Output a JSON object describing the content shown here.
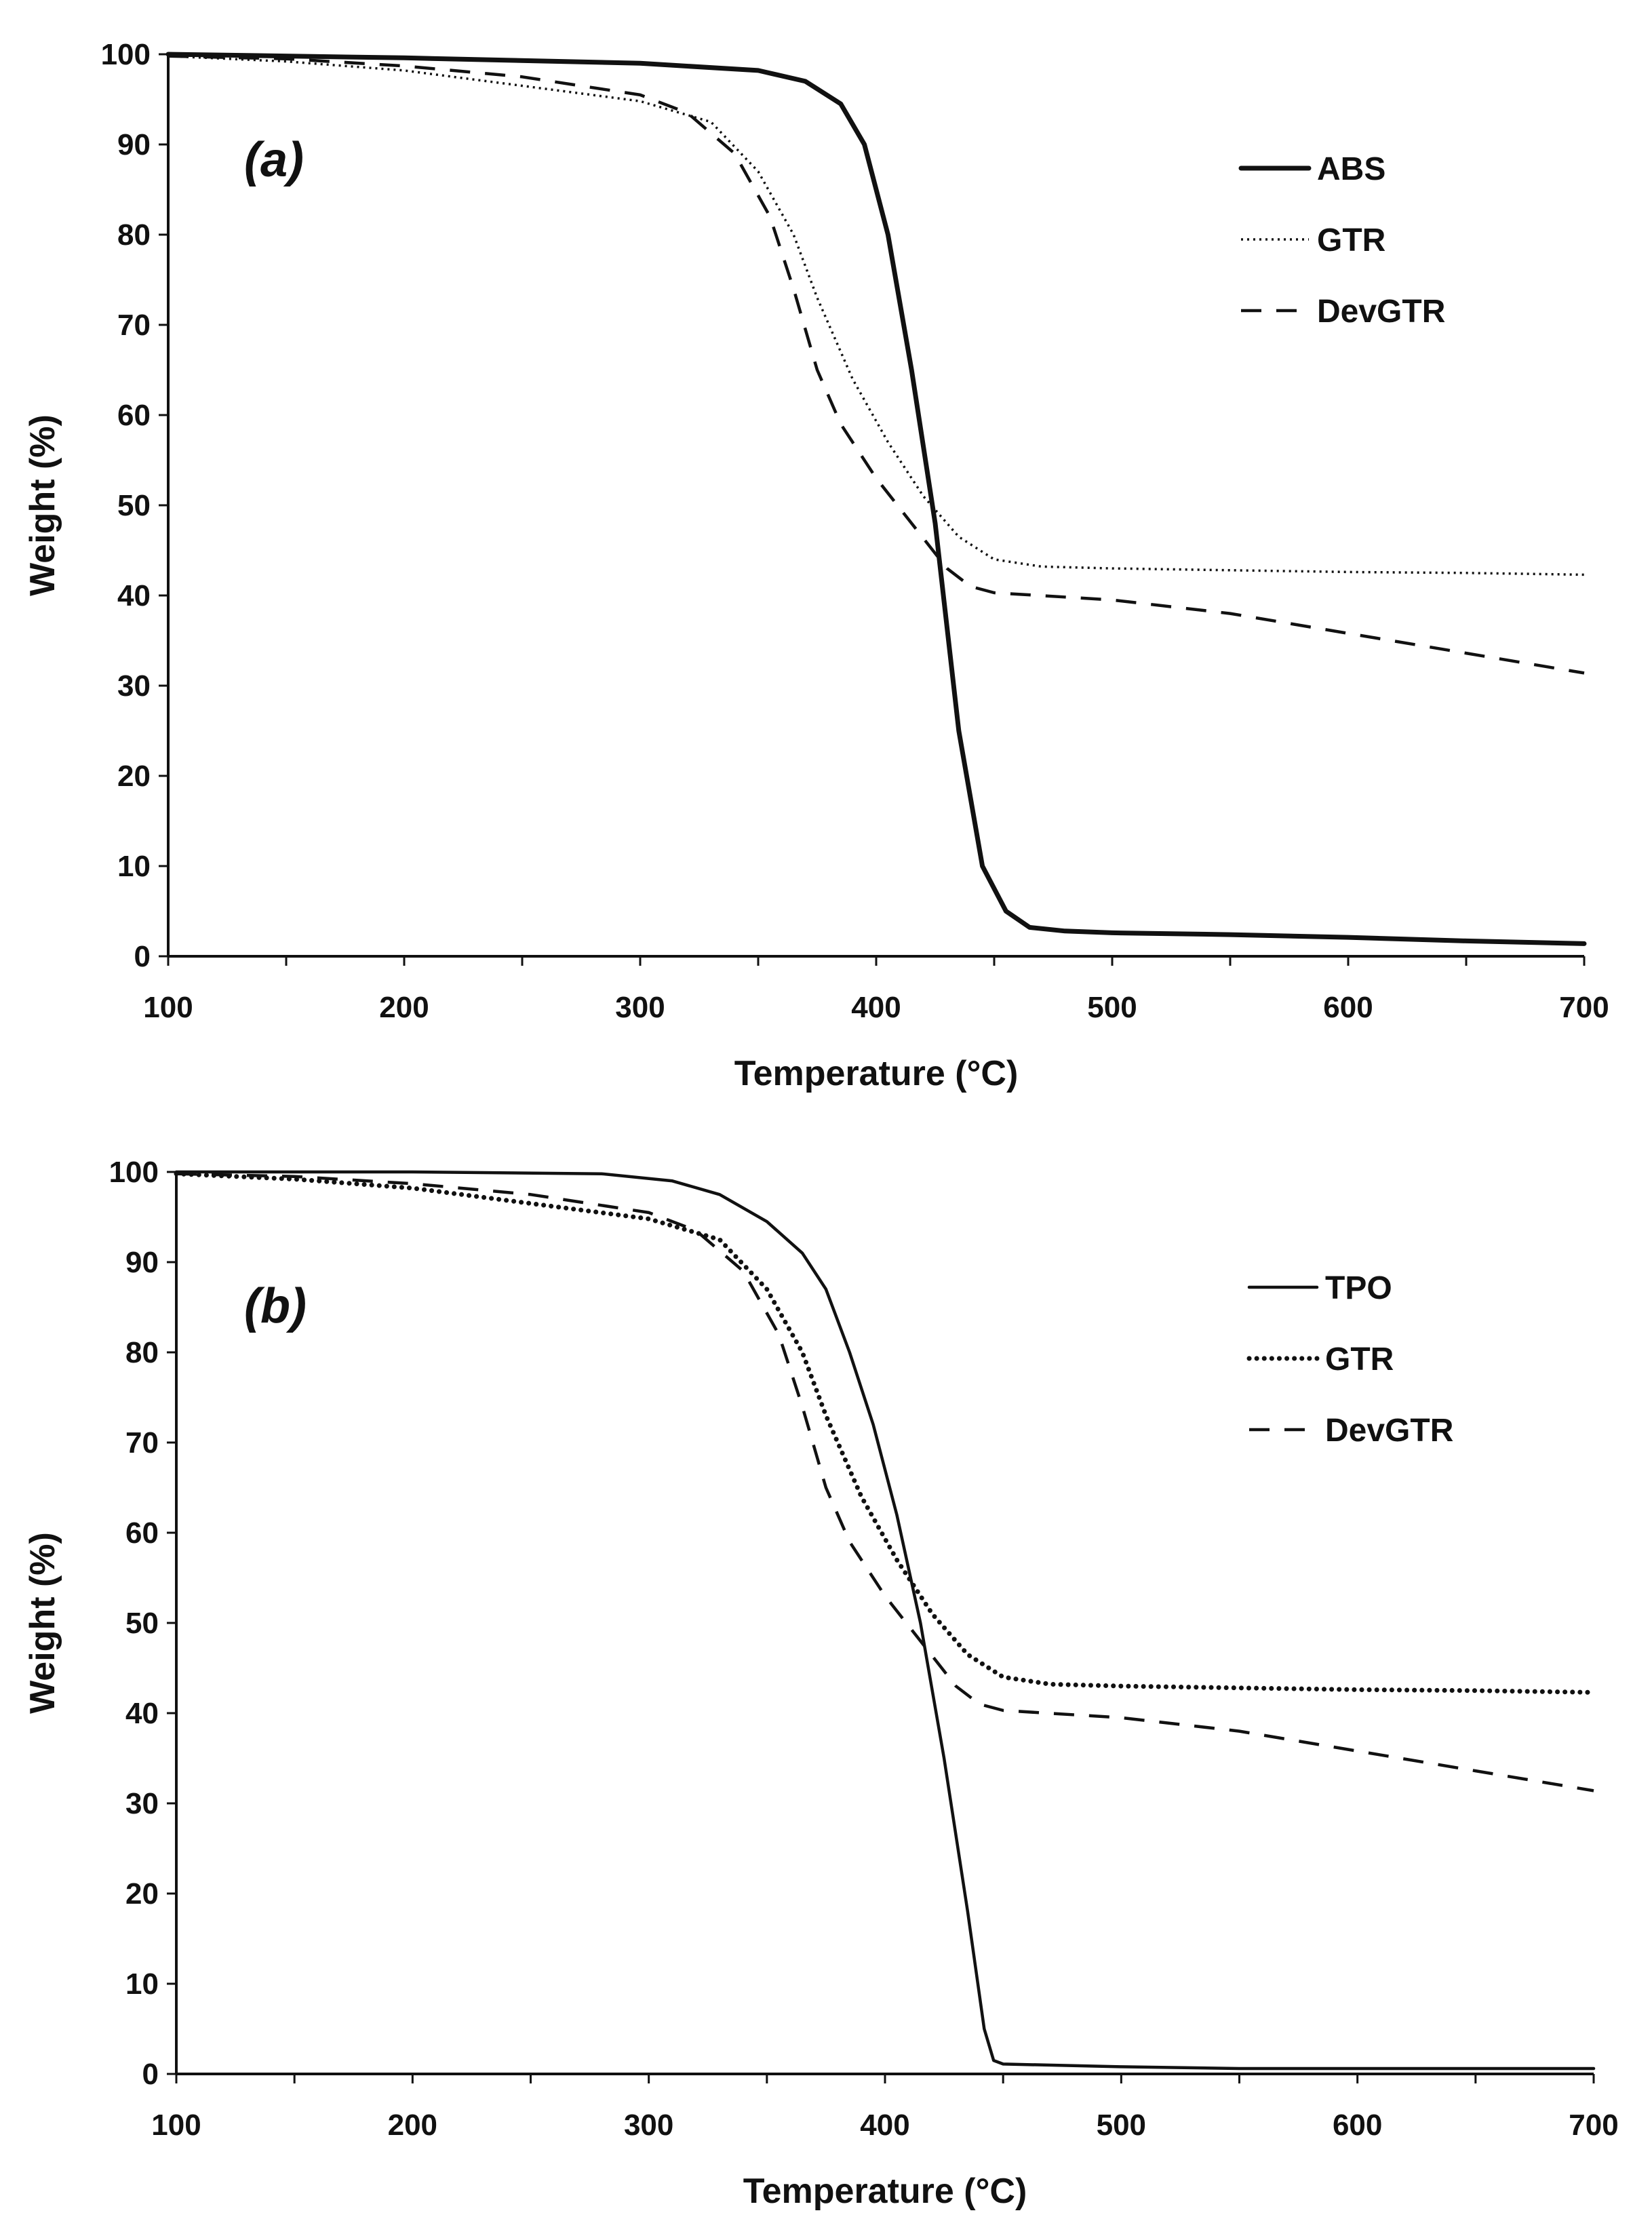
{
  "chart_data": [
    {
      "type": "line",
      "panel_label": "(a)",
      "xlabel": "Temperature (°C)",
      "ylabel": "Weight (%)",
      "xlim": [
        100,
        700
      ],
      "ylim": [
        0,
        100
      ],
      "xticks": [
        100,
        200,
        300,
        400,
        500,
        600,
        700
      ],
      "yticks": [
        0,
        10,
        20,
        30,
        40,
        50,
        60,
        70,
        80,
        90,
        100
      ],
      "grid": false,
      "legend_position": "top-right",
      "series": [
        {
          "name": "ABS",
          "style": "solid-thick",
          "points": [
            [
              100,
              100
            ],
            [
              200,
              99.6
            ],
            [
              300,
              99
            ],
            [
              350,
              98.2
            ],
            [
              370,
              97
            ],
            [
              385,
              94.5
            ],
            [
              395,
              90
            ],
            [
              405,
              80
            ],
            [
              415,
              65
            ],
            [
              425,
              48
            ],
            [
              435,
              25
            ],
            [
              445,
              10
            ],
            [
              455,
              5
            ],
            [
              465,
              3.2
            ],
            [
              480,
              2.8
            ],
            [
              500,
              2.6
            ],
            [
              550,
              2.4
            ],
            [
              600,
              2.1
            ],
            [
              650,
              1.7
            ],
            [
              700,
              1.4
            ]
          ]
        },
        {
          "name": "GTR",
          "style": "dotted",
          "points": [
            [
              100,
              99.8
            ],
            [
              150,
              99.2
            ],
            [
              200,
              98.2
            ],
            [
              250,
              96.5
            ],
            [
              300,
              94.8
            ],
            [
              330,
              92.5
            ],
            [
              350,
              87
            ],
            [
              365,
              80
            ],
            [
              375,
              73
            ],
            [
              390,
              64
            ],
            [
              405,
              57
            ],
            [
              420,
              51
            ],
            [
              435,
              46.5
            ],
            [
              450,
              44
            ],
            [
              470,
              43.2
            ],
            [
              500,
              43
            ],
            [
              550,
              42.8
            ],
            [
              600,
              42.6
            ],
            [
              650,
              42.5
            ],
            [
              700,
              42.3
            ]
          ]
        },
        {
          "name": "DevGTR",
          "style": "dashed",
          "points": [
            [
              100,
              99.8
            ],
            [
              150,
              99.5
            ],
            [
              200,
              98.7
            ],
            [
              250,
              97.5
            ],
            [
              300,
              95.5
            ],
            [
              320,
              93.5
            ],
            [
              340,
              89
            ],
            [
              355,
              82
            ],
            [
              365,
              74
            ],
            [
              375,
              65
            ],
            [
              385,
              59
            ],
            [
              400,
              53
            ],
            [
              415,
              48
            ],
            [
              430,
              43
            ],
            [
              440,
              41
            ],
            [
              450,
              40.3
            ],
            [
              500,
              39.5
            ],
            [
              550,
              38
            ],
            [
              600,
              35.8
            ],
            [
              650,
              33.6
            ],
            [
              700,
              31.4
            ]
          ]
        }
      ]
    },
    {
      "type": "line",
      "panel_label": "(b)",
      "xlabel": "Temperature (°C)",
      "ylabel": "Weight (%)",
      "xlim": [
        100,
        700
      ],
      "ylim": [
        0,
        100
      ],
      "xticks": [
        100,
        200,
        300,
        400,
        500,
        600,
        700
      ],
      "yticks": [
        0,
        10,
        20,
        30,
        40,
        50,
        60,
        70,
        80,
        90,
        100
      ],
      "grid": false,
      "legend_position": "top-right",
      "series": [
        {
          "name": "TPO",
          "style": "solid",
          "points": [
            [
              100,
              100
            ],
            [
              200,
              100
            ],
            [
              280,
              99.8
            ],
            [
              310,
              99
            ],
            [
              330,
              97.5
            ],
            [
              350,
              94.5
            ],
            [
              365,
              91
            ],
            [
              375,
              87
            ],
            [
              385,
              80
            ],
            [
              395,
              72
            ],
            [
              405,
              62
            ],
            [
              415,
              50
            ],
            [
              425,
              35
            ],
            [
              435,
              18
            ],
            [
              442,
              5
            ],
            [
              446,
              1.5
            ],
            [
              450,
              1.1
            ],
            [
              500,
              0.8
            ],
            [
              550,
              0.6
            ],
            [
              600,
              0.6
            ],
            [
              700,
              0.6
            ]
          ]
        },
        {
          "name": "GTR",
          "style": "dotted-thick",
          "points": [
            [
              100,
              99.8
            ],
            [
              150,
              99.2
            ],
            [
              200,
              98.2
            ],
            [
              250,
              96.5
            ],
            [
              300,
              94.8
            ],
            [
              330,
              92.5
            ],
            [
              350,
              87
            ],
            [
              365,
              80
            ],
            [
              375,
              73
            ],
            [
              390,
              64
            ],
            [
              405,
              57
            ],
            [
              420,
              51
            ],
            [
              435,
              46.5
            ],
            [
              450,
              44
            ],
            [
              470,
              43.2
            ],
            [
              500,
              43
            ],
            [
              550,
              42.8
            ],
            [
              600,
              42.6
            ],
            [
              650,
              42.5
            ],
            [
              700,
              42.3
            ]
          ]
        },
        {
          "name": "DevGTR",
          "style": "dashed",
          "points": [
            [
              100,
              99.8
            ],
            [
              150,
              99.5
            ],
            [
              200,
              98.7
            ],
            [
              250,
              97.5
            ],
            [
              300,
              95.5
            ],
            [
              320,
              93.5
            ],
            [
              340,
              89
            ],
            [
              355,
              82
            ],
            [
              365,
              74
            ],
            [
              375,
              65
            ],
            [
              385,
              59
            ],
            [
              400,
              53
            ],
            [
              415,
              48
            ],
            [
              430,
              43
            ],
            [
              440,
              41
            ],
            [
              450,
              40.3
            ],
            [
              500,
              39.5
            ],
            [
              550,
              38
            ],
            [
              600,
              35.8
            ],
            [
              650,
              33.6
            ],
            [
              700,
              31.4
            ]
          ]
        }
      ]
    }
  ]
}
